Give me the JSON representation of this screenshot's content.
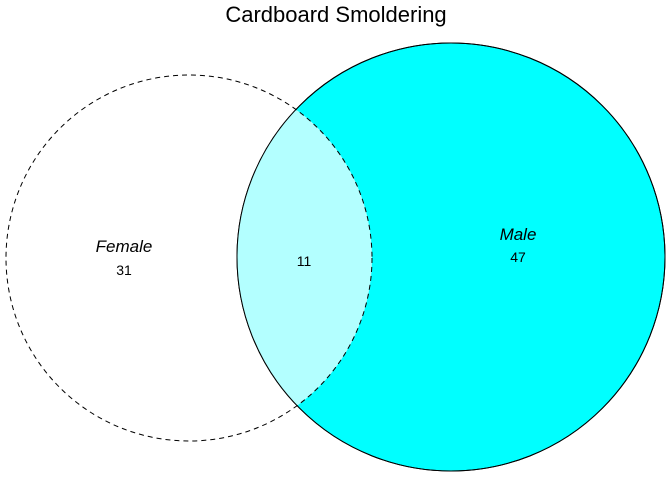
{
  "title": "Cardboard Smoldering",
  "sets": [
    {
      "name": "Female",
      "count": "31",
      "fill": "none",
      "stroke": "dashed"
    },
    {
      "name": "Male",
      "count": "47",
      "fill": "#00ffff",
      "stroke": "solid"
    }
  ],
  "intersection": {
    "count": "11",
    "fill": "#b3ffff"
  },
  "colors": {
    "male_fill": "#00ffff",
    "overlap_fill": "#b3ffff",
    "outline": "#000000",
    "background": "#ffffff"
  }
}
